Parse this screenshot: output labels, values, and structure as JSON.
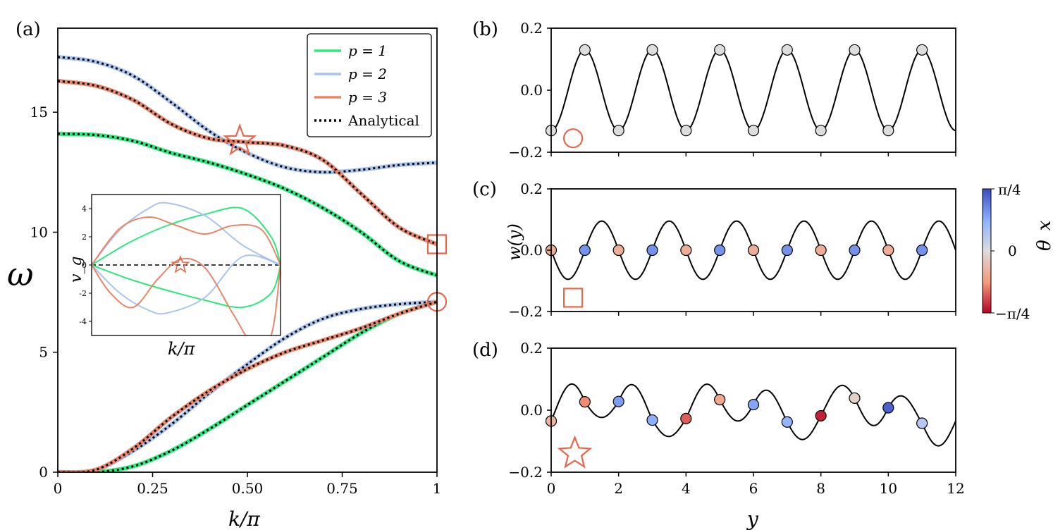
{
  "chart_data": [
    {
      "panel": "(a)",
      "type": "line",
      "xlabel": "k/π",
      "ylabel": "ω",
      "xlim": [
        0,
        1
      ],
      "ylim": [
        0,
        18.5
      ],
      "xticks": [
        "0",
        "0.25",
        "0.50",
        "0.75",
        "1"
      ],
      "yticks": [
        "0",
        "5",
        "10",
        "15"
      ],
      "legend": {
        "position": "top-right",
        "entries": [
          {
            "label": "p = 1",
            "color": "#2ee87a",
            "style": "solid"
          },
          {
            "label": "p = 2",
            "color": "#a9c4f0",
            "style": "solid"
          },
          {
            "label": "p = 3",
            "color": "#e8866a",
            "style": "solid"
          },
          {
            "label": "Analytical",
            "color": "#000000",
            "style": "dotted"
          }
        ]
      },
      "series": [
        {
          "p": 1,
          "branch": "acoustic",
          "color": "#2ee87a",
          "x": [
            0,
            0.1,
            0.2,
            0.3,
            0.4,
            0.5,
            0.6,
            0.7,
            0.8,
            0.9,
            1.0
          ],
          "y": [
            0,
            0.0,
            0.25,
            0.9,
            1.8,
            2.8,
            3.8,
            4.8,
            5.8,
            6.6,
            7.1
          ]
        },
        {
          "p": 2,
          "branch": "acoustic",
          "color": "#a9c4f0",
          "x": [
            0,
            0.1,
            0.2,
            0.3,
            0.4,
            0.5,
            0.6,
            0.7,
            0.8,
            0.9,
            1.0
          ],
          "y": [
            0,
            0.1,
            0.9,
            2.0,
            3.3,
            4.5,
            5.6,
            6.4,
            6.8,
            7.0,
            7.1
          ]
        },
        {
          "p": 3,
          "branch": "acoustic",
          "color": "#e8866a",
          "x": [
            0,
            0.1,
            0.2,
            0.3,
            0.4,
            0.5,
            0.6,
            0.7,
            0.8,
            0.9,
            1.0
          ],
          "y": [
            0,
            0.1,
            1.0,
            2.3,
            3.4,
            4.3,
            5.0,
            5.5,
            6.0,
            6.6,
            7.1
          ]
        },
        {
          "p": 1,
          "branch": "optical",
          "color": "#2ee87a",
          "x": [
            0,
            0.1,
            0.2,
            0.3,
            0.4,
            0.5,
            0.6,
            0.7,
            0.8,
            0.9,
            1.0
          ],
          "y": [
            14.1,
            14.05,
            13.8,
            13.3,
            12.9,
            12.4,
            11.8,
            11.0,
            10.0,
            8.8,
            8.2
          ]
        },
        {
          "p": 2,
          "branch": "optical",
          "color": "#a9c4f0",
          "x": [
            0,
            0.1,
            0.2,
            0.3,
            0.4,
            0.5,
            0.6,
            0.7,
            0.8,
            0.9,
            1.0
          ],
          "y": [
            17.3,
            17.1,
            16.5,
            15.4,
            14.2,
            13.3,
            12.7,
            12.5,
            12.6,
            12.8,
            12.9
          ]
        },
        {
          "p": 3,
          "branch": "optical",
          "color": "#e8866a",
          "x": [
            0,
            0.1,
            0.2,
            0.3,
            0.4,
            0.5,
            0.6,
            0.7,
            0.8,
            0.9,
            1.0
          ],
          "y": [
            16.3,
            16.1,
            15.5,
            14.5,
            13.9,
            13.75,
            13.6,
            13.0,
            11.6,
            10.2,
            9.5
          ]
        }
      ],
      "markers": [
        {
          "shape": "star",
          "x": 0.48,
          "y": 13.8,
          "color": "#e8664a"
        },
        {
          "shape": "square",
          "x": 1.0,
          "y": 9.5,
          "color": "#e8664a"
        },
        {
          "shape": "circle",
          "x": 1.0,
          "y": 7.1,
          "color": "#e8664a"
        }
      ],
      "inset": {
        "type": "line",
        "xlabel": "k/π",
        "ylabel": "v_g",
        "xlim": [
          0,
          1
        ],
        "ylim": [
          -5,
          5
        ],
        "yticks": [
          "4",
          "2",
          "0",
          "-2",
          "-4"
        ],
        "zero_line": "dashed",
        "marker": {
          "shape": "star",
          "x": 0.47,
          "y": 0
        },
        "series": [
          {
            "p": 1,
            "color": "#2ee87a",
            "x": [
              0,
              0.2,
              0.4,
              0.6,
              0.8,
              0.95,
              1.0
            ],
            "y": [
              0,
              1.6,
              2.8,
              3.6,
              4.0,
              2.0,
              0
            ]
          },
          {
            "p": 1,
            "color": "#2ee87a",
            "x": [
              0,
              0.2,
              0.4,
              0.6,
              0.8,
              0.95,
              1.0
            ],
            "y": [
              0,
              -1.0,
              -1.8,
              -2.5,
              -3.0,
              -2.0,
              0
            ]
          },
          {
            "p": 2,
            "color": "#a9c4f0",
            "x": [
              0,
              0.15,
              0.3,
              0.4,
              0.6,
              0.8,
              1.0
            ],
            "y": [
              0,
              2.5,
              4.0,
              4.4,
              3.5,
              1.4,
              0
            ]
          },
          {
            "p": 2,
            "color": "#a9c4f0",
            "x": [
              0,
              0.15,
              0.3,
              0.4,
              0.6,
              0.8,
              1.0
            ],
            "y": [
              0,
              -2.0,
              -3.2,
              -3.4,
              -2.3,
              0.6,
              0
            ]
          },
          {
            "p": 3,
            "color": "#e8866a",
            "x": [
              0,
              0.15,
              0.3,
              0.45,
              0.6,
              0.75,
              0.9,
              1.0
            ],
            "y": [
              0,
              2.6,
              3.4,
              2.8,
              2.2,
              2.8,
              2.5,
              0
            ]
          },
          {
            "p": 3,
            "color": "#e8866a",
            "x": [
              0,
              0.1,
              0.22,
              0.35,
              0.47,
              0.6,
              0.75,
              0.85,
              0.95,
              1.0
            ],
            "y": [
              0,
              -2.0,
              -3.0,
              -1.0,
              0.4,
              -0.2,
              -3.5,
              -5.5,
              -5.0,
              0
            ]
          }
        ]
      }
    },
    {
      "panel": "(b)",
      "type": "line",
      "marker": "circle",
      "xlim": [
        0,
        12
      ],
      "ylim": [
        -0.2,
        0.2
      ],
      "yticks": [
        "0.2",
        "0.0",
        "−0.2"
      ],
      "curve": {
        "amplitude": 0.13,
        "period": 2,
        "phase": "minimum at y=0"
      },
      "points": {
        "y": [
          0,
          1,
          2,
          3,
          4,
          5,
          6,
          7,
          8,
          9,
          10,
          11
        ],
        "w": [
          -0.13,
          0.13,
          -0.13,
          0.13,
          -0.13,
          0.13,
          -0.13,
          0.13,
          -0.13,
          0.13,
          -0.13,
          0.13
        ],
        "theta": [
          0,
          0,
          0,
          0,
          0,
          0,
          0,
          0,
          0,
          0,
          0,
          0
        ]
      }
    },
    {
      "panel": "(c)",
      "type": "line",
      "marker": "square",
      "xlim": [
        0,
        12
      ],
      "ylim": [
        -0.2,
        0.2
      ],
      "yticks": [
        "0.2",
        "0.0",
        "−0.2"
      ],
      "ylabel": "w(y)",
      "curve": {
        "amplitude": 0.095,
        "period": 2,
        "phase": "zero at integers"
      },
      "points": {
        "y": [
          0,
          1,
          2,
          3,
          4,
          5,
          6,
          7,
          8,
          9,
          10,
          11
        ],
        "w": [
          0,
          0,
          0,
          0,
          0,
          0,
          0,
          0,
          0,
          0,
          0,
          0
        ],
        "theta": [
          -0.35,
          0.65,
          -0.35,
          0.65,
          -0.35,
          0.65,
          -0.35,
          0.65,
          -0.35,
          0.65,
          -0.35,
          0.65
        ]
      }
    },
    {
      "panel": "(d)",
      "type": "line",
      "marker": "star",
      "xlim": [
        0,
        12
      ],
      "ylim": [
        -0.2,
        0.2
      ],
      "xticks": [
        "0",
        "2",
        "4",
        "6",
        "8",
        "10",
        "12"
      ],
      "yticks": [
        "0.2",
        "0.0",
        "−0.2"
      ],
      "xlabel": "y",
      "points": {
        "y": [
          0,
          1,
          2,
          3,
          4,
          5,
          6,
          7,
          8,
          9,
          10,
          11
        ],
        "w": [
          -0.035,
          0.027,
          0.028,
          -0.032,
          -0.027,
          0.034,
          0.018,
          -0.038,
          -0.018,
          0.039,
          0.008,
          -0.042
        ],
        "theta": [
          -0.3,
          -0.55,
          0.6,
          0.5,
          -0.7,
          -0.4,
          0.55,
          0.45,
          -0.9,
          -0.1,
          0.9,
          0.25
        ]
      }
    }
  ],
  "colorbar": {
    "label": "θ_x",
    "top": "π/4",
    "middle": "0",
    "bottom": "−π/4"
  }
}
